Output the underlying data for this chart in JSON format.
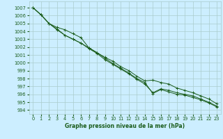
{
  "title": "Graphe pression niveau de la mer (hPa)",
  "bg_color": "#cceeff",
  "grid_color": "#aacccc",
  "line_color": "#1a5c1a",
  "x_ticks": [
    0,
    1,
    2,
    3,
    4,
    5,
    6,
    7,
    8,
    9,
    10,
    11,
    12,
    13,
    14,
    15,
    16,
    17,
    18,
    19,
    20,
    21,
    22,
    23
  ],
  "y_ticks": [
    994,
    995,
    996,
    997,
    998,
    999,
    1000,
    1001,
    1002,
    1003,
    1004,
    1005,
    1006,
    1007
  ],
  "ylim": [
    993.5,
    1007.8
  ],
  "xlim": [
    -0.5,
    23.5
  ],
  "series": [
    [
      1007.0,
      1006.1,
      1005.0,
      1004.5,
      1004.2,
      1003.7,
      1003.2,
      1001.9,
      1001.3,
      1000.7,
      1000.2,
      999.5,
      999.0,
      998.3,
      997.7,
      997.8,
      997.5,
      997.3,
      996.8,
      996.5,
      996.2,
      995.8,
      995.4,
      994.8
    ],
    [
      1007.0,
      1006.1,
      1005.0,
      1004.3,
      1003.5,
      1003.0,
      1002.5,
      1001.9,
      1001.3,
      1000.6,
      999.9,
      999.3,
      998.7,
      998.0,
      997.5,
      996.1,
      996.6,
      996.3,
      996.0,
      995.9,
      995.6,
      995.3,
      994.9,
      994.4
    ],
    [
      1007.0,
      1006.1,
      1005.0,
      1004.2,
      1003.5,
      1003.0,
      1002.5,
      1001.8,
      1001.2,
      1000.4,
      999.8,
      999.2,
      998.6,
      997.9,
      997.3,
      996.2,
      996.7,
      996.5,
      996.2,
      996.0,
      995.8,
      995.4,
      995.0,
      994.5
    ]
  ]
}
